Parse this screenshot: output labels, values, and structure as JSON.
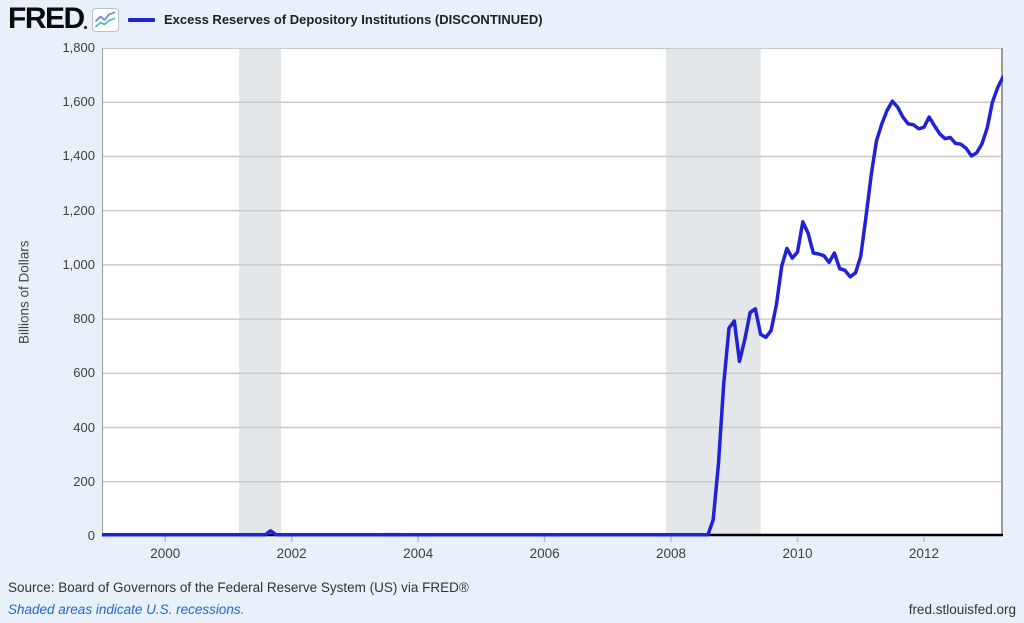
{
  "page": {
    "background": "#e8f1fa"
  },
  "header": {
    "logo_text": "FRED",
    "legend": {
      "swatch_color": "#2121d6",
      "label": "Excess Reserves of Depository Institutions (DISCONTINUED)"
    }
  },
  "chart_data": {
    "type": "line",
    "title": "Excess Reserves of Depository Institutions (DISCONTINUED)",
    "ylabel": "Billions of Dollars",
    "xlabel": "",
    "x_range": [
      1999.0,
      2013.25
    ],
    "y_range": [
      0,
      1800
    ],
    "y_ticks": [
      0,
      200,
      400,
      600,
      800,
      1000,
      1200,
      1400,
      1600,
      1800
    ],
    "y_tick_labels": [
      "0",
      "200",
      "400",
      "600",
      "800",
      "1,000",
      "1,200",
      "1,400",
      "1,600",
      "1,800"
    ],
    "x_ticks": [
      2000,
      2002,
      2004,
      2006,
      2008,
      2010,
      2012
    ],
    "x_tick_labels": [
      "2000",
      "2002",
      "2004",
      "2006",
      "2008",
      "2010",
      "2012"
    ],
    "grid": true,
    "legend_position": "top-left",
    "line_color": "#2121d6",
    "grid_color": "#c9c9c9",
    "border_color": "#9a9a9a",
    "axis_color": "#000000",
    "plot_bg": "#ffffff",
    "recession_color": "#e3e7ea",
    "tick_mark_color": "#aac2da",
    "recessions": [
      [
        2001.167,
        2001.833
      ],
      [
        2007.917,
        2009.417
      ]
    ],
    "series": [
      {
        "name": "Excess Reserves of Depository Institutions (DISCONTINUED)",
        "units": "Billions of Dollars",
        "points": [
          [
            1999.0,
            1.2
          ],
          [
            1999.5,
            1.3
          ],
          [
            2000.0,
            1.5
          ],
          [
            2000.5,
            1.4
          ],
          [
            2001.0,
            1.6
          ],
          [
            2001.417,
            1.5
          ],
          [
            2001.583,
            2.0
          ],
          [
            2001.667,
            19.0
          ],
          [
            2001.75,
            2.0
          ],
          [
            2002.0,
            1.6
          ],
          [
            2002.5,
            1.5
          ],
          [
            2003.083,
            1.8
          ],
          [
            2003.167,
            3.8
          ],
          [
            2003.417,
            1.6
          ],
          [
            2003.583,
            5.0
          ],
          [
            2003.75,
            1.8
          ],
          [
            2004.0,
            1.8
          ],
          [
            2004.5,
            1.6
          ],
          [
            2005.0,
            1.7
          ],
          [
            2005.5,
            1.5
          ],
          [
            2006.0,
            1.6
          ],
          [
            2006.5,
            1.5
          ],
          [
            2007.0,
            1.5
          ],
          [
            2007.5,
            1.6
          ],
          [
            2007.583,
            4.2
          ],
          [
            2007.667,
            1.8
          ],
          [
            2008.0,
            1.7
          ],
          [
            2008.25,
            1.8
          ],
          [
            2008.583,
            1.9
          ],
          [
            2008.667,
            60
          ],
          [
            2008.75,
            268
          ],
          [
            2008.833,
            560
          ],
          [
            2008.917,
            767
          ],
          [
            2009.0,
            793
          ],
          [
            2009.083,
            644
          ],
          [
            2009.167,
            725
          ],
          [
            2009.25,
            824
          ],
          [
            2009.333,
            838
          ],
          [
            2009.417,
            744
          ],
          [
            2009.5,
            733
          ],
          [
            2009.583,
            758
          ],
          [
            2009.667,
            855
          ],
          [
            2009.75,
            995
          ],
          [
            2009.833,
            1061
          ],
          [
            2009.917,
            1025
          ],
          [
            2010.0,
            1047
          ],
          [
            2010.083,
            1159
          ],
          [
            2010.167,
            1117
          ],
          [
            2010.25,
            1044
          ],
          [
            2010.333,
            1040
          ],
          [
            2010.417,
            1034
          ],
          [
            2010.5,
            1009
          ],
          [
            2010.583,
            1044
          ],
          [
            2010.667,
            986
          ],
          [
            2010.75,
            980
          ],
          [
            2010.833,
            956
          ],
          [
            2010.917,
            971
          ],
          [
            2011.0,
            1031
          ],
          [
            2011.083,
            1178
          ],
          [
            2011.167,
            1334
          ],
          [
            2011.25,
            1458
          ],
          [
            2011.333,
            1520
          ],
          [
            2011.417,
            1570
          ],
          [
            2011.5,
            1604
          ],
          [
            2011.583,
            1582
          ],
          [
            2011.667,
            1545
          ],
          [
            2011.75,
            1520
          ],
          [
            2011.833,
            1517
          ],
          [
            2011.917,
            1502
          ],
          [
            2012.0,
            1508
          ],
          [
            2012.083,
            1545
          ],
          [
            2012.167,
            1513
          ],
          [
            2012.25,
            1483
          ],
          [
            2012.333,
            1466
          ],
          [
            2012.417,
            1470
          ],
          [
            2012.5,
            1448
          ],
          [
            2012.583,
            1445
          ],
          [
            2012.667,
            1430
          ],
          [
            2012.75,
            1402
          ],
          [
            2012.833,
            1413
          ],
          [
            2012.917,
            1446
          ],
          [
            2013.0,
            1505
          ],
          [
            2013.083,
            1600
          ],
          [
            2013.167,
            1655
          ],
          [
            2013.25,
            1693
          ]
        ]
      }
    ]
  },
  "footer": {
    "source": "Source: Board of Governors of the Federal Reserve System (US) via FRED®",
    "recession_note": "Shaded areas indicate U.S. recessions.",
    "site": "fred.stlouisfed.org"
  }
}
